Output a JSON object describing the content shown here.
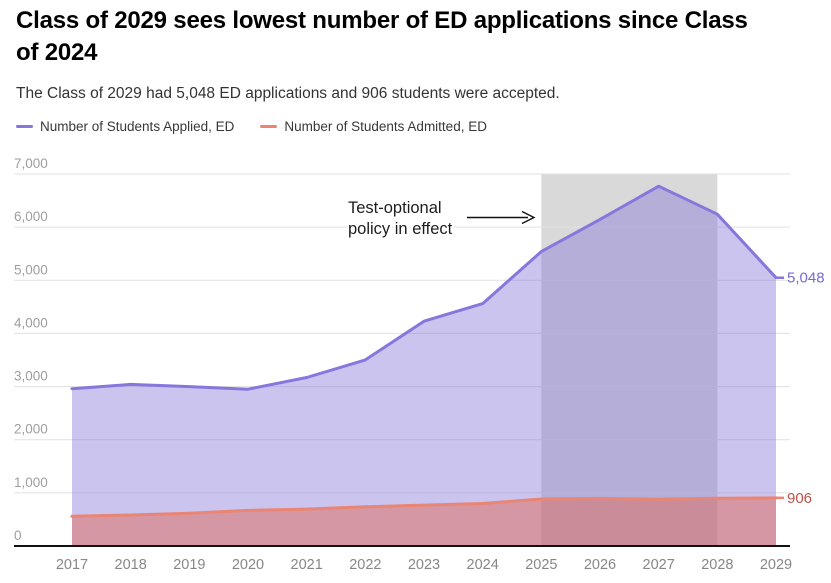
{
  "chart_data": {
    "type": "area",
    "title": "Class of 2029 sees lowest number of ED applications since Class\nof 2024",
    "subtitle": "The Class of 2029 had 5,048 ED applications and 906 students were accepted.",
    "x": [
      2017,
      2018,
      2019,
      2020,
      2021,
      2022,
      2023,
      2024,
      2025,
      2026,
      2027,
      2028,
      2029
    ],
    "xlabel": "",
    "ylabel": "",
    "ylim": [
      0,
      7000
    ],
    "yticks": [
      0,
      1000,
      2000,
      3000,
      4000,
      5000,
      6000,
      7000
    ],
    "ytick_labels": [
      "0",
      "1,000",
      "2,000",
      "3,000",
      "4,000",
      "5,000",
      "6,000",
      "7,000"
    ],
    "grid": true,
    "legend_position": "top-left",
    "series": [
      {
        "key": "applied",
        "name": "Number of Students Applied, ED",
        "color": "#8677dd",
        "fill_color": "#8372d8",
        "fill_opacity": 0.42,
        "label_color": "#756bd1",
        "end_label": "5,048",
        "values": [
          2960,
          3040,
          3000,
          2950,
          3170,
          3502,
          4230,
          4562,
          5540,
          6146,
          6770,
          6244,
          5048
        ]
      },
      {
        "key": "admitted",
        "name": "Number of Students Admitted, ED",
        "color": "#ea8574",
        "fill_color": "#e06a5a",
        "fill_opacity": 0.5,
        "label_color": "#bd5449",
        "end_label": "906",
        "values": [
          558,
          583,
          617,
          669,
          695,
          738,
          769,
          800,
          885,
          896,
          879,
          898,
          906
        ]
      }
    ],
    "band": {
      "from": 2025,
      "to": 2028,
      "color": "#d9d9d9"
    },
    "annotation": {
      "text_lines": [
        "Test-optional",
        "policy in effect"
      ],
      "arrow": true
    },
    "axis_colors": {
      "grid": "#e1e1e1",
      "axis_line": "#111111",
      "y_label": "#9e9e9e",
      "x_label": "#878787",
      "annotation_text": "#1d1d1d"
    }
  }
}
